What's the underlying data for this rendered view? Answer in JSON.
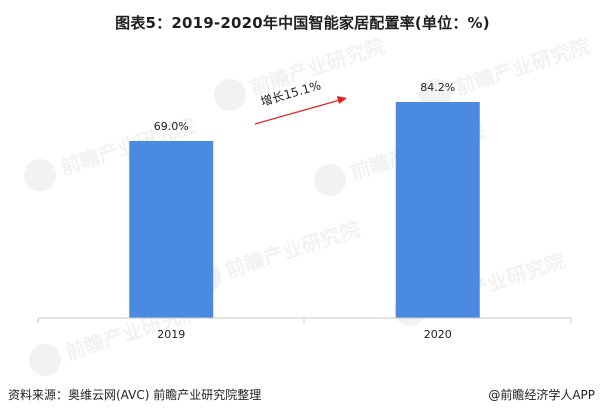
{
  "title": "图表5：2019-2020年中国智能家居配置率(单位：%)",
  "chart_data": {
    "type": "bar",
    "categories": [
      "2019",
      "2020"
    ],
    "values": [
      69.0,
      84.2
    ],
    "value_labels": [
      "69.0%",
      "84.2%"
    ],
    "ylim": [
      0,
      100
    ],
    "grid": false,
    "bar_color": "#4a8ae0",
    "annotation": {
      "text": "增长15.1%",
      "arrow_color": "#e02020"
    }
  },
  "watermark": {
    "text": "前瞻产业研究院"
  },
  "footer": {
    "source": "资料来源：奥维云网(AVC) 前瞻产业研究院整理",
    "brand": "@前瞻经济学人APP"
  }
}
